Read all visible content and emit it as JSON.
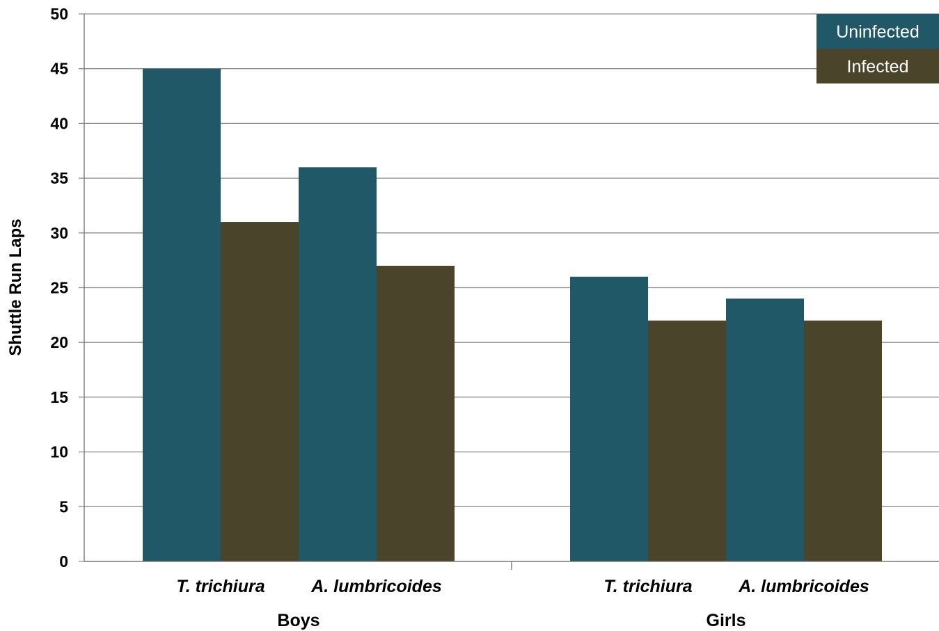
{
  "chart_data": {
    "type": "bar",
    "ylabel": "Shuttle Run Laps",
    "ylim": [
      0,
      50
    ],
    "yticks": [
      0,
      5,
      10,
      15,
      20,
      25,
      30,
      35,
      40,
      45,
      50
    ],
    "grid": true,
    "legend_position": "top-right",
    "groups": [
      {
        "label": "Boys",
        "categories": [
          "T. trichiura",
          "A. lumbricoides"
        ]
      },
      {
        "label": "Girls",
        "categories": [
          "T. trichiura",
          "A. lumbricoides"
        ]
      }
    ],
    "series": [
      {
        "name": "Uninfected",
        "color": "#215868",
        "values": [
          45,
          36,
          26,
          24
        ]
      },
      {
        "name": "Infected",
        "color": "#4A442A",
        "values": [
          31,
          27,
          22,
          22
        ]
      }
    ]
  }
}
